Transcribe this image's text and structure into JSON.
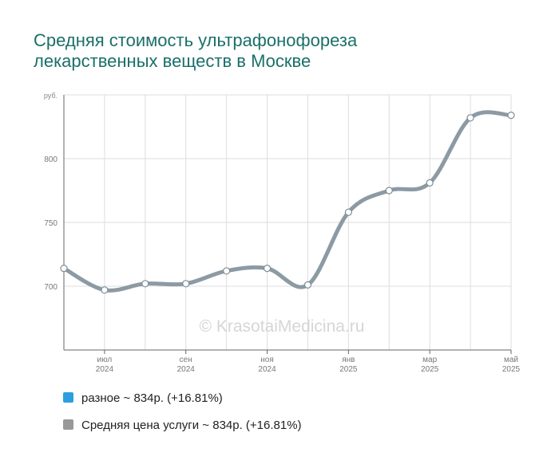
{
  "title": {
    "line1": "Средняя стоимость ультрафонофореза",
    "line2": "лекарственных веществ в Москве"
  },
  "watermark": "© KrasotaiMedicina.ru",
  "colors": {
    "title": "#1b6f6a",
    "line": "#8c9aa4",
    "grid": "#dddddd",
    "axis": "#666666",
    "watermark": "#d6d6d6"
  },
  "chart_data": {
    "type": "line",
    "y_unit_label": "руб.",
    "ylim": [
      650,
      850
    ],
    "yticks": [
      700,
      750,
      800
    ],
    "x_tick_labels": [
      {
        "month": "июл",
        "year": "2024",
        "index": 1
      },
      {
        "month": "сен",
        "year": "2024",
        "index": 3
      },
      {
        "month": "ноя",
        "year": "2024",
        "index": 5
      },
      {
        "month": "янв",
        "year": "2025",
        "index": 7
      },
      {
        "month": "мар",
        "year": "2025",
        "index": 9
      },
      {
        "month": "май",
        "year": "2025",
        "index": 11
      }
    ],
    "x": [
      "2024-06",
      "2024-07",
      "2024-08",
      "2024-09",
      "2024-10",
      "2024-11",
      "2024-12",
      "2025-01",
      "2025-02",
      "2025-03",
      "2025-04",
      "2025-05"
    ],
    "series": [
      {
        "name": "Средняя цена услуги",
        "values": [
          714,
          697,
          702,
          702,
          712,
          714,
          701,
          758,
          775,
          781,
          832,
          834
        ]
      }
    ],
    "grid": true
  },
  "legend": [
    {
      "label": "разное ~ 834р. (+16.81%)",
      "color": "#2b9fe0"
    },
    {
      "label": "Средняя цена услуги ~ 834р. (+16.81%)",
      "color": "#999999"
    }
  ]
}
